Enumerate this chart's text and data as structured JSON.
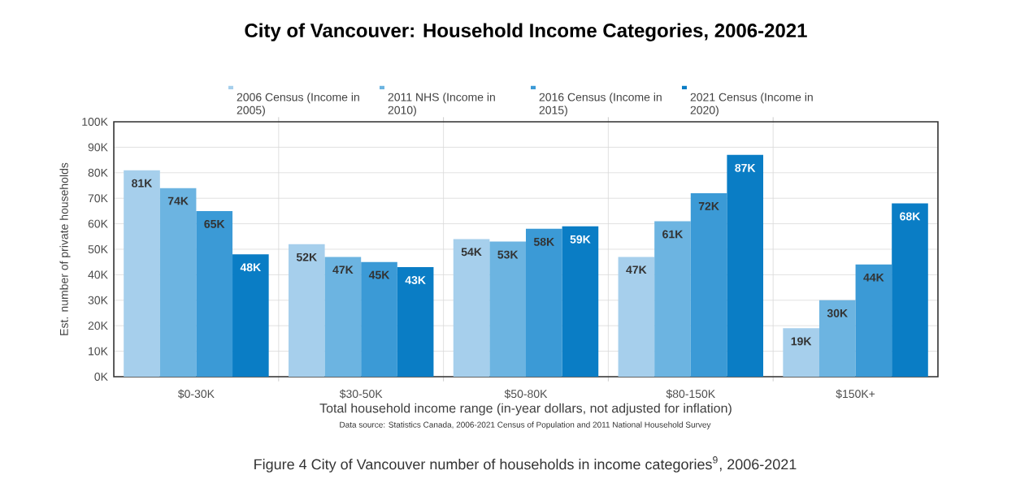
{
  "chart_data": {
    "type": "bar",
    "title": "City of Vancouver: Household Income Categories, 2006-2021",
    "categories": [
      "$0-30K",
      "$30-50K",
      "$50-80K",
      "$80-150K",
      "$150K+"
    ],
    "xlabel": "Total household income range (in-year dollars, not adjusted for inflation)",
    "ylabel": "Est. number of private households",
    "series": [
      {
        "name": "2006 Census (Income in 2005)",
        "color": "#a6cfec",
        "values": [
          81,
          52,
          54,
          47,
          19
        ],
        "value_labels": [
          "81K",
          "52K",
          "54K",
          "47K",
          "19K"
        ]
      },
      {
        "name": "2011 NHS (Income in 2010)",
        "color": "#6cb4e1",
        "values": [
          74,
          47,
          53,
          61,
          30
        ],
        "value_labels": [
          "74K",
          "47K",
          "53K",
          "61K",
          "30K"
        ]
      },
      {
        "name": "2016 Census (Income in 2015)",
        "color": "#3b9ad6",
        "values": [
          65,
          45,
          58,
          72,
          44
        ],
        "value_labels": [
          "65K",
          "45K",
          "58K",
          "72K",
          "44K"
        ]
      },
      {
        "name": "2021 Census (Income in 2020)",
        "color": "#0a7dc5",
        "values": [
          48,
          43,
          59,
          87,
          68
        ],
        "value_labels": [
          "48K",
          "43K",
          "59K",
          "87K",
          "68K"
        ]
      }
    ],
    "ylim": [
      0,
      100
    ],
    "yticks": [
      {
        "value": 0,
        "label": "0K"
      },
      {
        "value": 10,
        "label": "10K"
      },
      {
        "value": 20,
        "label": "20K"
      },
      {
        "value": 30,
        "label": "30K"
      },
      {
        "value": 40,
        "label": "40K"
      },
      {
        "value": 50,
        "label": "50K"
      },
      {
        "value": 60,
        "label": "60K"
      },
      {
        "value": 70,
        "label": "70K"
      },
      {
        "value": 80,
        "label": "80K"
      },
      {
        "value": 90,
        "label": "90K"
      },
      {
        "value": 100,
        "label": "100K"
      }
    ],
    "grid": true,
    "legend": "top",
    "annotations": [
      "Data source: Statistics Canada, 2006-2021 Census of Population and 2011 National Household Survey",
      "Figure 4 City of Vancouver number of households in income categories$^{9}$, 2006-2021"
    ]
  }
}
